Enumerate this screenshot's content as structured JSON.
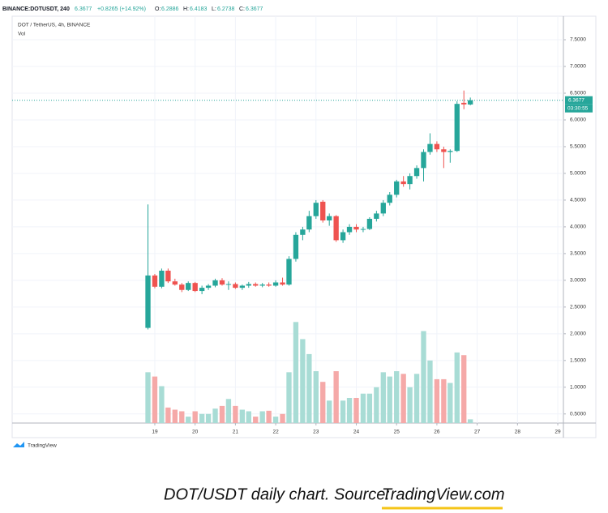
{
  "header": {
    "symbol": "BINANCE:DOTUSDT, 240",
    "change": "+0.8265 (+14.92%)",
    "ohlc_labels": [
      "O:",
      "H:",
      "L:",
      "C:"
    ],
    "legend": "DOT / TetherUS, 4h, BINANCE",
    "volume_legend": "Vol",
    "timer": "03:30:55"
  },
  "chart_data": {
    "type": "candlestick",
    "x": [
      18.83,
      19,
      19.17,
      19.33,
      19.5,
      19.67,
      19.83,
      20,
      20.17,
      20.33,
      20.5,
      20.67,
      20.83,
      21,
      21.17,
      21.33,
      21.5,
      21.67,
      21.83,
      22,
      22.17,
      22.33,
      22.5,
      22.67,
      22.83,
      23,
      23.17,
      23.33,
      23.5,
      23.67,
      23.83,
      24,
      24.17,
      24.33,
      24.5,
      24.67,
      24.83,
      25,
      25.17,
      25.33,
      25.5,
      25.67,
      25.83,
      26,
      26.17,
      26.33,
      26.5,
      26.67,
      26.83
    ],
    "open": [
      2.11,
      3.09,
      2.88,
      3.18,
      2.98,
      2.92,
      2.82,
      2.95,
      2.8,
      2.86,
      2.9,
      3.0,
      2.92,
      2.93,
      2.86,
      2.9,
      2.93,
      2.9,
      2.92,
      2.9,
      2.96,
      2.92,
      3.4,
      3.85,
      3.95,
      4.2,
      4.47,
      4.12,
      4.2,
      3.75,
      3.9,
      4.0,
      3.95,
      3.96,
      4.15,
      4.25,
      4.45,
      4.6,
      4.85,
      4.8,
      4.95,
      5.1,
      5.4,
      5.55,
      5.45,
      5.4,
      5.42,
      6.32,
      6.2886
    ],
    "high": [
      4.42,
      3.12,
      3.22,
      3.22,
      3.03,
      2.95,
      2.98,
      2.97,
      2.9,
      2.93,
      3.03,
      3.04,
      2.98,
      2.96,
      2.92,
      2.97,
      2.96,
      2.95,
      2.96,
      3.0,
      3.05,
      3.45,
      3.9,
      4.0,
      4.3,
      4.5,
      4.5,
      4.25,
      4.22,
      3.95,
      4.05,
      4.05,
      4.0,
      4.18,
      4.3,
      4.5,
      4.65,
      4.88,
      4.95,
      5.0,
      5.15,
      5.45,
      5.75,
      5.6,
      5.5,
      5.45,
      6.35,
      6.55,
      6.4183
    ],
    "low": [
      2.08,
      2.85,
      2.85,
      2.95,
      2.9,
      2.78,
      2.8,
      2.78,
      2.74,
      2.82,
      2.87,
      2.9,
      2.82,
      2.84,
      2.82,
      2.86,
      2.88,
      2.87,
      2.88,
      2.88,
      2.9,
      2.9,
      3.35,
      3.75,
      3.9,
      4.15,
      4.08,
      4.02,
      3.72,
      3.7,
      3.85,
      3.9,
      3.9,
      3.94,
      4.1,
      4.2,
      4.4,
      4.55,
      4.75,
      4.7,
      4.9,
      4.85,
      5.35,
      5.4,
      5.1,
      5.2,
      5.4,
      6.2,
      6.2738
    ],
    "close": [
      3.09,
      2.88,
      3.18,
      2.98,
      2.92,
      2.82,
      2.95,
      2.8,
      2.86,
      2.9,
      3.0,
      2.92,
      2.93,
      2.86,
      2.9,
      2.93,
      2.9,
      2.92,
      2.9,
      2.96,
      2.92,
      3.4,
      3.85,
      3.95,
      4.2,
      4.45,
      4.12,
      4.2,
      3.75,
      3.9,
      4.0,
      3.95,
      3.96,
      4.15,
      4.25,
      4.45,
      4.6,
      4.85,
      4.8,
      4.95,
      5.1,
      5.4,
      5.55,
      5.45,
      5.4,
      5.42,
      6.3,
      6.29,
      6.3677
    ],
    "volume": [
      1.28,
      1.2,
      1.02,
      0.62,
      0.58,
      0.55,
      0.45,
      0.55,
      0.5,
      0.5,
      0.6,
      0.65,
      0.78,
      0.65,
      0.58,
      0.55,
      0.45,
      0.55,
      0.56,
      0.45,
      0.5,
      1.28,
      2.22,
      1.9,
      1.62,
      1.3,
      1.1,
      0.75,
      1.3,
      0.75,
      0.8,
      0.8,
      0.88,
      0.88,
      1.0,
      1.28,
      1.2,
      1.3,
      1.25,
      1.0,
      1.25,
      2.05,
      1.5,
      1.15,
      1.15,
      1.08,
      1.65,
      1.6,
      0.4
    ],
    "up_color": "#26a69a",
    "down_color": "#ef5350",
    "volume_up_color": "#a8dcd5",
    "volume_down_color": "#f5a9a8",
    "xlim": [
      15.46,
      29.14
    ],
    "xticks": [
      19,
      20,
      21,
      22,
      23,
      24,
      25,
      26,
      27,
      28,
      29
    ],
    "ylim": [
      0.33,
      7.94
    ],
    "yticks": [
      {
        "value": 0.5,
        "label": "0.5000"
      },
      {
        "value": 1,
        "label": "1.0000"
      },
      {
        "value": 1.5,
        "label": "1.5000"
      },
      {
        "value": 2,
        "label": "2.0000"
      },
      {
        "value": 2.5,
        "label": "2.5000"
      },
      {
        "value": 3,
        "label": "3.0000"
      },
      {
        "value": 3.5,
        "label": "3.5000"
      },
      {
        "value": 4,
        "label": "4.0000"
      },
      {
        "value": 4.5,
        "label": "4.5000"
      },
      {
        "value": 5,
        "label": "5.0000"
      },
      {
        "value": 5.5,
        "label": "5.5000"
      },
      {
        "value": 6,
        "label": "6.0000"
      },
      {
        "value": 6.5,
        "label": "6.5000"
      },
      {
        "value": 7,
        "label": "7.0000"
      },
      {
        "value": 7.5,
        "label": "7.5000"
      }
    ],
    "grid": true
  },
  "footer": {
    "brand": "TradingView",
    "caption": "DOT/USDT daily chart. Source: ",
    "caption_link": "TradingView.com"
  }
}
